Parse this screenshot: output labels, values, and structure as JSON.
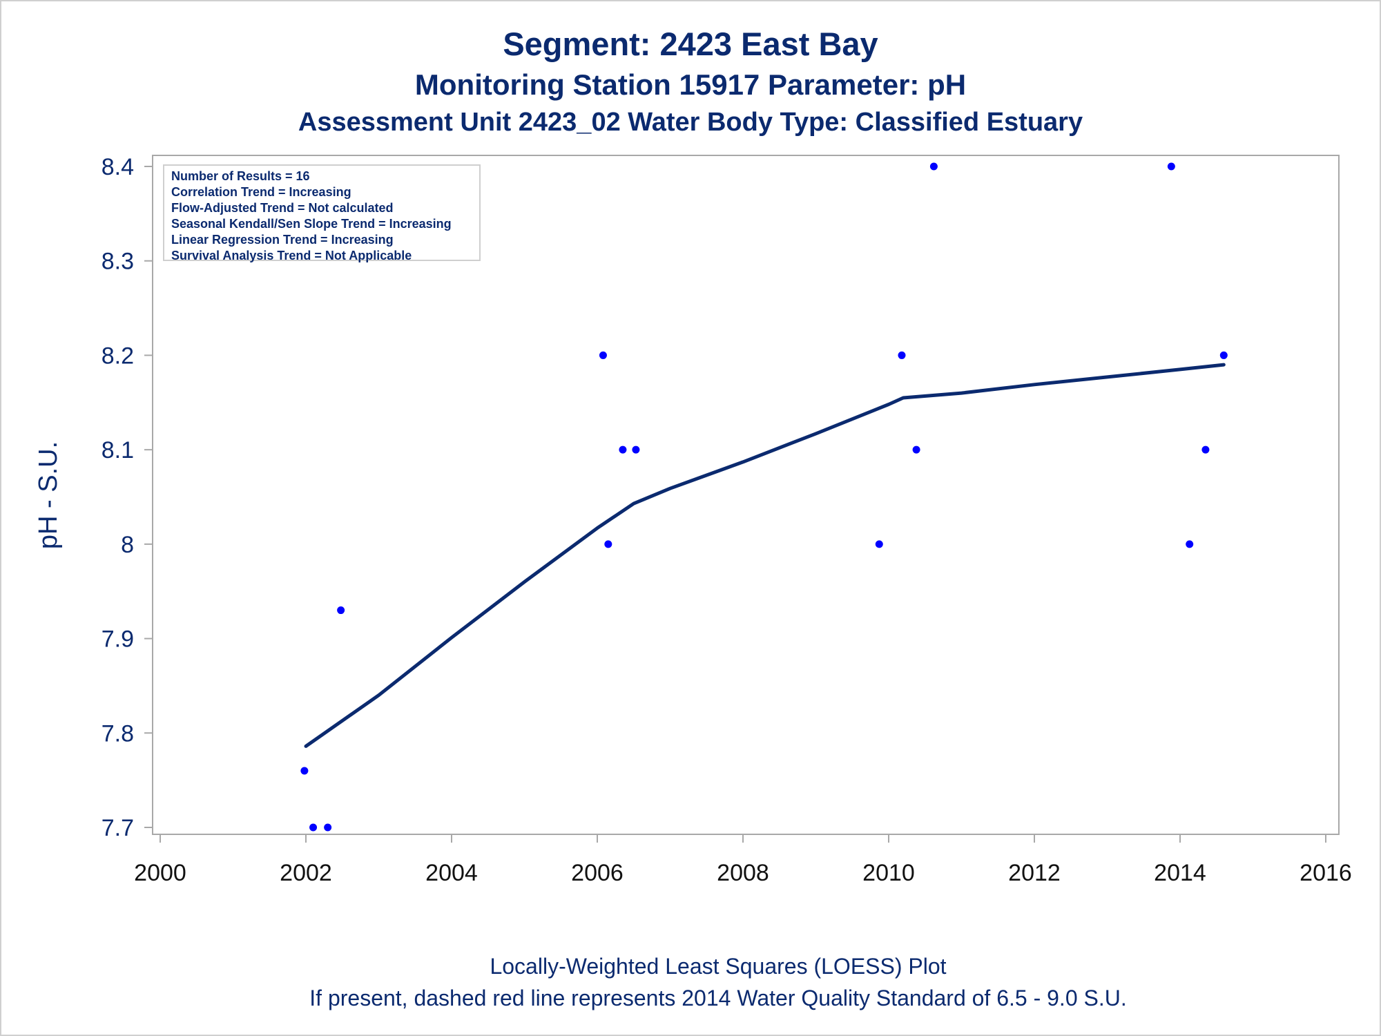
{
  "titles": {
    "line1": "Segment: 2423  East Bay",
    "line2": "Monitoring Station 15917 Parameter: pH",
    "line3": "Assessment Unit 2423_02   Water Body Type: Classified Estuary"
  },
  "stats": [
    "Number of Results = 16",
    "Correlation Trend = Increasing",
    "Flow-Adjusted Trend = Not calculated",
    "Seasonal Kendall/Sen Slope Trend = Increasing",
    "Linear Regression Trend = Increasing",
    "Survival Analysis Trend = Not Applicable"
  ],
  "footnotes": {
    "line1": "Locally-Weighted Least Squares (LOESS) Plot",
    "line2": "If present, dashed red line represents 2014 Water Quality Standard of 6.5 - 9.0 S.U."
  },
  "colors": {
    "text": "#0b2a6f",
    "points": "#0000ff",
    "loess": "#0b2a6f",
    "frame": "#a8a8a8"
  },
  "chart_data": {
    "type": "scatter",
    "title": "Segment: 2423  East Bay",
    "xlabel": "",
    "ylabel": "pH - S.U.",
    "xlim": [
      2000,
      2016
    ],
    "ylim": [
      7.7,
      8.4
    ],
    "x_ticks": [
      2000,
      2002,
      2004,
      2006,
      2008,
      2010,
      2012,
      2014,
      2016
    ],
    "y_ticks": [
      7.7,
      7.8,
      7.9,
      8.0,
      8.1,
      8.2,
      8.3,
      8.4
    ],
    "y_tick_labels": [
      "7.7",
      "7.8",
      "7.9",
      "8",
      "8.1",
      "8.2",
      "8.3",
      "8.4"
    ],
    "grid": false,
    "series": [
      {
        "type": "scatter",
        "x": [
          2001.98,
          2002.1,
          2002.3,
          2002.48,
          2006.08,
          2006.15,
          2006.35,
          2006.53,
          2009.87,
          2010.18,
          2010.38,
          2010.62,
          2013.88,
          2014.13,
          2014.35,
          2014.6
        ],
        "y": [
          7.76,
          7.7,
          7.7,
          7.93,
          8.2,
          8.0,
          8.1,
          8.1,
          8.0,
          8.2,
          8.1,
          8.4,
          8.4,
          8.0,
          8.1,
          8.2
        ]
      },
      {
        "type": "line",
        "x": [
          2002.0,
          2003.0,
          2004.0,
          2005.0,
          2006.0,
          2006.5,
          2007.0,
          2008.0,
          2009.0,
          2010.0,
          2010.2,
          2011.0,
          2012.0,
          2013.0,
          2014.0,
          2014.6
        ],
        "y": [
          7.786,
          7.84,
          7.901,
          7.96,
          8.017,
          8.043,
          8.059,
          8.087,
          8.117,
          8.148,
          8.155,
          8.16,
          8.169,
          8.177,
          8.185,
          8.19
        ]
      }
    ]
  }
}
